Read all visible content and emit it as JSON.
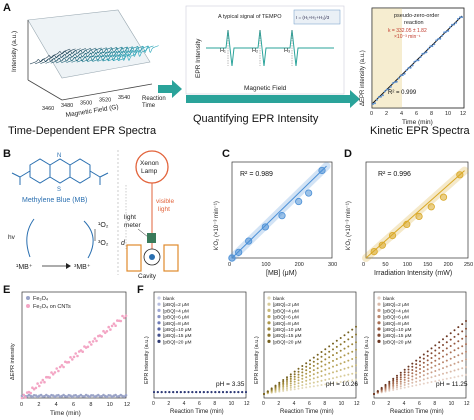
{
  "panel_a": {
    "letter": "A",
    "spectra3d": {
      "zlabel": "Intensity (a.u.)",
      "xlabel": "Magnetic Field (G)",
      "ylabel_line1": "Reaction",
      "ylabel_line2": "Time",
      "x_ticks": [
        "3460",
        "3480",
        "3500",
        "3520",
        "3540"
      ]
    },
    "epr_inset": {
      "title": "A typical signal of TEMPO",
      "formula": "I = (H₁+H₂+H₃)/3",
      "peak_labels": [
        "H₁",
        "H₂",
        "H₃"
      ],
      "ylabel": "EPR Intensity",
      "xlabel": "Magnetic Field"
    },
    "kinetic": {
      "legend_line1": "pseudo-zero-order",
      "legend_line2": "reaction",
      "k_line1": "k = 332.05 ± 1.82",
      "k_line2": "×10⁻³ min⁻¹",
      "r2": "R² = 0.999",
      "ylabel": "ΔEPR intensity (a.u.)",
      "xlabel": "Time (min)",
      "x_ticks": [
        "0",
        "2",
        "4",
        "6",
        "8",
        "10",
        "12"
      ]
    },
    "captions": {
      "left": "Time-Dependent EPR Spectra",
      "middle": "Quantifying EPR Intensity",
      "right": "Kinetic EPR Spectra"
    }
  },
  "panel_b": {
    "letter": "B",
    "molecule_label": "Methylene Blue (MB)",
    "hv": "hv",
    "o2_upper": "¹O₂",
    "o2_lower": "³O₂",
    "mb_singlet": "¹MB⁺",
    "mb_triplet": "³MB⁺",
    "lamp_line1": "Xenon",
    "lamp_line2": "Lamp",
    "visible_line1": "visible",
    "visible_line2": "light",
    "meter_line1": "light",
    "meter_line2": "meter",
    "cavity": "Cavity",
    "d_label": "d"
  },
  "panel_c": {
    "letter": "C",
    "r2": "R² = 0.989",
    "xlabel": "[MB] (μM)",
    "ylabel": "k’O₂ (×10⁻³ min⁻¹)",
    "color": "#4a8fd6",
    "chart_data": {
      "type": "scatter",
      "x_ticks": [
        "0",
        "100",
        "200",
        "300"
      ],
      "points": [
        {
          "x": 0,
          "y": 0
        },
        {
          "x": 20,
          "y": 20
        },
        {
          "x": 50,
          "y": 60
        },
        {
          "x": 100,
          "y": 110
        },
        {
          "x": 150,
          "y": 150
        },
        {
          "x": 200,
          "y": 200
        },
        {
          "x": 230,
          "y": 230
        },
        {
          "x": 270,
          "y": 310
        }
      ],
      "xlim": [
        0,
        300
      ],
      "ylim": [
        0,
        340
      ]
    }
  },
  "panel_d": {
    "letter": "D",
    "r2": "R² = 0.996",
    "xlabel": "Irradiation Intensity (mW)",
    "ylabel": "k’O₂ (×10⁻³ min⁻¹)",
    "color": "#d9a826",
    "chart_data": {
      "type": "scatter",
      "x_ticks": [
        "0",
        "50",
        "100",
        "150",
        "200",
        "250"
      ],
      "points": [
        {
          "x": 20,
          "y": 20
        },
        {
          "x": 40,
          "y": 40
        },
        {
          "x": 65,
          "y": 70
        },
        {
          "x": 100,
          "y": 105
        },
        {
          "x": 130,
          "y": 130
        },
        {
          "x": 160,
          "y": 160
        },
        {
          "x": 190,
          "y": 190
        },
        {
          "x": 230,
          "y": 260
        }
      ],
      "xlim": [
        0,
        250
      ],
      "ylim": [
        0,
        300
      ]
    }
  },
  "panel_e": {
    "letter": "E",
    "xlabel": "Time (min)",
    "ylabel": "ΔEPR intensity",
    "chart_data": {
      "type": "scatter",
      "x_ticks": [
        "0",
        "2",
        "4",
        "6",
        "8",
        "10",
        "12"
      ],
      "xlim": [
        0,
        12
      ],
      "ylim": [
        0,
        1
      ],
      "series": [
        {
          "name": "Fe₃O₄",
          "color": "#9aa3c7",
          "slope": 0.0
        },
        {
          "name": "Fe₃O₄ on CNTs",
          "color": "#f3a5c4",
          "slope": 0.065
        }
      ]
    }
  },
  "panel_f": {
    "letter": "F",
    "legend": [
      "blank",
      "[pBQ]=2 μM",
      "[pBQ]=4 μM",
      "[pBQ]=6 μM",
      "[pBQ]=8 μM",
      "[pBQ]=10 μM",
      "[pBQ]=15 μM",
      "[pBQ]=20 μM"
    ],
    "ylabel": "EPR Intensity (a.u.)",
    "xlabel": "Reaction Time (min)",
    "x_ticks": [
      "0",
      "2",
      "4",
      "6",
      "8",
      "10",
      "12"
    ],
    "subplots": [
      {
        "ph": "pH = 3.35",
        "colors": [
          "#c9cee6",
          "#b6bddf",
          "#9ea7d2",
          "#8691c4",
          "#6e7bb6",
          "#5866a5",
          "#434f8d",
          "#2f3a73"
        ],
        "slopes": [
          0,
          0,
          0,
          0,
          0,
          0,
          0,
          0
        ]
      },
      {
        "ph": "pH = 10.26",
        "colors": [
          "#e3dab9",
          "#d7cb98",
          "#c9b97a",
          "#bba860",
          "#ad974a",
          "#9c8538",
          "#89732a",
          "#75601e"
        ],
        "slopes": [
          0.15,
          0.22,
          0.3,
          0.38,
          0.46,
          0.54,
          0.62,
          0.7
        ]
      },
      {
        "ph": "pH = 11.25",
        "colors": [
          "#e6d1c6",
          "#d9b9a8",
          "#c99e88",
          "#b9856b",
          "#a86e53",
          "#95593f",
          "#80462f",
          "#6b3621"
        ],
        "slopes": [
          0.2,
          0.28,
          0.36,
          0.44,
          0.52,
          0.6,
          0.68,
          0.76
        ]
      }
    ]
  }
}
